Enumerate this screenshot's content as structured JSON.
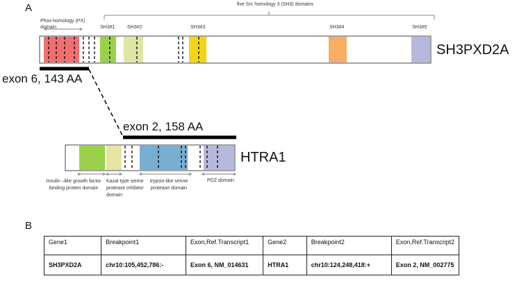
{
  "panel_a_label": "A",
  "panel_b_label": "B",
  "sh3pxd2a": {
    "gene_name": "SH3PXD2A",
    "sh3_group_label": "five Src homology 3 (SH3) domains",
    "px_label": "Phox-homology (PX) domain",
    "sh3_labels": [
      "SH3#1",
      "SH3#2",
      "SH3#3",
      "SH3#4",
      "SH3#5"
    ],
    "exon_label": "exon 6, 143 AA"
  },
  "htra1": {
    "gene_name": "HTRA1",
    "exon_label": "exon 2, 158 AA",
    "domain_labels": {
      "igf": "Insulin –like growth factor binding protein domain",
      "kazal": "Kazal type serine protease inhibitor domain",
      "trypsin": "trypsin-like serine protease domain",
      "pdz": "PDZ domain"
    }
  },
  "colors": {
    "px": "#f07070",
    "sh3_1": "#99d24a",
    "sh3_2": "#dfe6a4",
    "sh3_3": "#f5d417",
    "sh3_4": "#f9ad65",
    "sh3_5": "#b7b8dd",
    "igf": "#99d24a",
    "kazal": "#e6e6a2",
    "trypsin": "#78aed2",
    "pdz": "#b7b8dd"
  },
  "table": {
    "headers": [
      "Gene1",
      "Breakpoint1",
      "Exon,Ref.Transcript1",
      "Gene2",
      "Breakpoint2",
      "Exon,Ref.Transcript2"
    ],
    "row": [
      "SH3PXD2A",
      "chr10:105,452,786:-",
      "Exon 6, NM_014631",
      "HTRA1",
      "chr10:124,248,418:+",
      "Exon 2, NM_002775"
    ]
  }
}
